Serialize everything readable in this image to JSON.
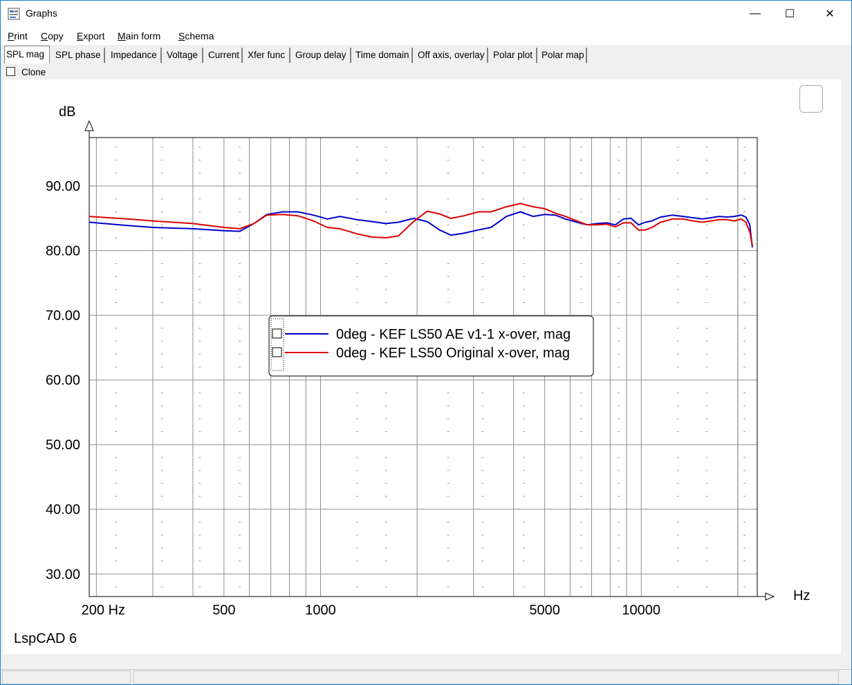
{
  "window": {
    "title": "Graphs",
    "minimize_glyph": "—",
    "maximize_glyph": "☐",
    "close_glyph": "✕"
  },
  "menu": [
    {
      "label": "Print",
      "accel": "P"
    },
    {
      "label": "Copy",
      "accel": "C"
    },
    {
      "label": "Export",
      "accel": "E"
    },
    {
      "label": "Main form",
      "accel": "M"
    },
    {
      "label": "Schema",
      "accel": "S"
    }
  ],
  "tabs": [
    "SPL mag",
    "SPL phase",
    "Impedance",
    "Voltage",
    "Current",
    "Xfer func",
    "Group delay",
    "Time domain",
    "Off axis, overlay",
    "Polar plot",
    "Polar map"
  ],
  "active_tab": "SPL mag",
  "clone_label": "Clone",
  "brand": "LspCAD 6",
  "chart_data": {
    "type": "line",
    "ylabel": "dB",
    "xlabel": "Hz",
    "x_scale": "log",
    "xlim": [
      190,
      23000
    ],
    "ylim": [
      26.5,
      97.5
    ],
    "x_tick_labels": [
      {
        "value": 200,
        "label": "200 Hz"
      },
      {
        "value": 500,
        "label": "500"
      },
      {
        "value": 1000,
        "label": "1000"
      },
      {
        "value": 5000,
        "label": "5000"
      },
      {
        "value": 10000,
        "label": "10000"
      }
    ],
    "y_ticks": [
      30,
      40,
      50,
      60,
      70,
      80,
      90
    ],
    "y_tick_labels": [
      "30.00",
      "40.00",
      "50.00",
      "60.00",
      "70.00",
      "80.00",
      "90.00"
    ],
    "grid": true,
    "legend_position": "center",
    "series": [
      {
        "name": "0deg - KEF LS50 AE v1-1 x-over, mag",
        "color": "#0000cc",
        "x": [
          190,
          250,
          300,
          400,
          500,
          560,
          620,
          680,
          760,
          850,
          950,
          1050,
          1150,
          1300,
          1450,
          1600,
          1750,
          1950,
          2150,
          2350,
          2550,
          2800,
          3100,
          3400,
          3800,
          4200,
          4600,
          5000,
          5400,
          5800,
          6300,
          6800,
          7300,
          7800,
          8300,
          8800,
          9300,
          9800,
          10300,
          10800,
          11500,
          12500,
          13500,
          14500,
          15500,
          16500,
          17500,
          18500,
          19500,
          20500,
          21200,
          21800,
          22200
        ],
        "y": [
          84.4,
          83.9,
          83.6,
          83.4,
          83.1,
          83.0,
          84.2,
          85.6,
          86.0,
          86.0,
          85.5,
          84.9,
          85.3,
          84.8,
          84.5,
          84.2,
          84.4,
          85.0,
          84.5,
          83.2,
          82.4,
          82.7,
          83.2,
          83.6,
          85.3,
          86.0,
          85.3,
          85.6,
          85.5,
          84.9,
          84.4,
          84.0,
          84.2,
          84.3,
          84.0,
          84.9,
          85.0,
          84.0,
          84.4,
          84.6,
          85.2,
          85.5,
          85.3,
          85.1,
          84.9,
          85.1,
          85.3,
          85.2,
          85.3,
          85.5,
          85.2,
          84.0,
          80.5
        ]
      },
      {
        "name": "0deg - KEF LS50 Original x-over, mag",
        "color": "#e00000",
        "x": [
          190,
          250,
          300,
          400,
          500,
          560,
          620,
          680,
          760,
          850,
          950,
          1050,
          1150,
          1300,
          1450,
          1600,
          1750,
          1950,
          2150,
          2350,
          2550,
          2800,
          3100,
          3400,
          3800,
          4200,
          4600,
          5000,
          5400,
          5800,
          6300,
          6800,
          7300,
          7800,
          8300,
          8800,
          9300,
          9800,
          10300,
          10800,
          11500,
          12500,
          13500,
          14500,
          15500,
          16500,
          17500,
          18500,
          19500,
          20500,
          21200,
          21800,
          22200
        ],
        "y": [
          85.3,
          84.9,
          84.6,
          84.2,
          83.6,
          83.4,
          84.2,
          85.5,
          85.6,
          85.4,
          84.6,
          83.6,
          83.4,
          82.6,
          82.1,
          82.0,
          82.3,
          84.5,
          86.1,
          85.7,
          85.0,
          85.4,
          86.0,
          86.0,
          86.8,
          87.3,
          86.8,
          86.5,
          85.8,
          85.3,
          84.6,
          84.0,
          84.0,
          84.1,
          83.7,
          84.3,
          84.3,
          83.2,
          83.2,
          83.6,
          84.4,
          84.9,
          84.9,
          84.6,
          84.4,
          84.6,
          84.8,
          84.8,
          84.6,
          84.9,
          84.4,
          82.9,
          80.8
        ]
      }
    ]
  }
}
